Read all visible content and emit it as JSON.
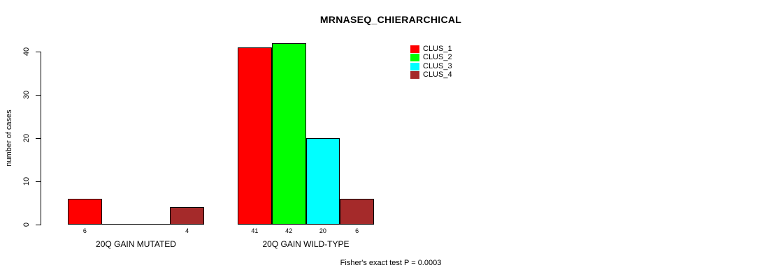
{
  "chart_data": {
    "type": "bar",
    "title": "MRNASEQ_CHIERARCHICAL",
    "ylabel": "number of cases",
    "xlabel": "",
    "categories": [
      "20Q GAIN MUTATED",
      "20Q GAIN WILD-TYPE"
    ],
    "series": [
      {
        "name": "CLUS_1",
        "color": "#FF0000",
        "values": [
          6,
          41
        ]
      },
      {
        "name": "CLUS_2",
        "color": "#00FF00",
        "values": [
          0,
          42
        ]
      },
      {
        "name": "CLUS_3",
        "color": "#00FFFF",
        "values": [
          0,
          20
        ]
      },
      {
        "name": "CLUS_4",
        "color": "#A52A2A",
        "values": [
          4,
          6
        ]
      }
    ],
    "ylim": [
      0,
      40
    ],
    "yticks": [
      0,
      10,
      20,
      30,
      40
    ],
    "grid": false,
    "legend_position": "top-right",
    "bar_value_labels": [
      [
        "6",
        null,
        null,
        "4"
      ],
      [
        "41",
        "42",
        "20",
        "6"
      ]
    ],
    "annotation": "Fisher's exact test P = 0.0003"
  }
}
